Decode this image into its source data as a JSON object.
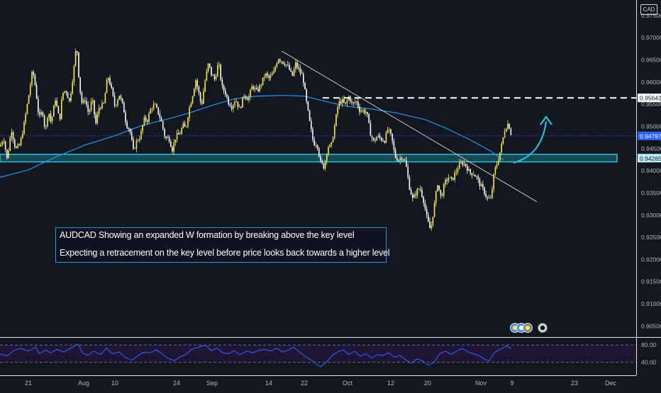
{
  "currency_badge": "CAD",
  "annotation": {
    "line1": "AUDCAD Showing an expanded W formation by breaking above the key level",
    "line2": "Expecting a retracement on the key level before price looks back towards a higher level"
  },
  "price_axis": {
    "ticks": [
      0.975,
      0.97,
      0.965,
      0.96,
      0.955,
      0.95,
      0.945,
      0.94,
      0.935,
      0.93,
      0.925,
      0.92,
      0.915,
      0.91,
      0.905
    ],
    "tick_labels": [
      "0.97500",
      "0.97000",
      "0.96500",
      "0.96000",
      "0.95500",
      "0.95000",
      "0.94500",
      "0.94000",
      "0.93500",
      "0.93000",
      "0.92500",
      "0.92000",
      "0.91500",
      "0.91000",
      "0.90500"
    ],
    "range": [
      0.9025,
      0.9785
    ],
    "markers": [
      {
        "label": "0.95643",
        "value": 0.95643,
        "color": "#ffffff",
        "text_color": "#131722"
      },
      {
        "label": "0.94787",
        "value": 0.94787,
        "color": "#2962ff",
        "text_color": "#ffffff"
      },
      {
        "label": "0.94285",
        "value": 0.94285,
        "color": "#b9f2f7",
        "text_color": "#131722"
      }
    ]
  },
  "rsi_axis": {
    "tick_labels": [
      "80.00",
      "40.00"
    ],
    "ticks": [
      80,
      40
    ],
    "range": [
      20,
      95
    ]
  },
  "time_axis": {
    "labels": [
      "21",
      "Aug",
      "10",
      "24",
      "Sep",
      "14",
      "22",
      "Oct",
      "12",
      "20",
      "Nov",
      "9",
      "23",
      "Dec"
    ]
  },
  "colors": {
    "background": "#131722",
    "candle_up": "#ffeb3b",
    "candle_down": "#ffffff",
    "moving_average": "#2196f3",
    "key_level_zone": "#26c6da",
    "rsi_line": "#2962ff",
    "trendline": "#c8c8c8",
    "arrow": "#26c6da"
  },
  "chart_data": {
    "type": "candlestick",
    "symbol": "AUDCAD",
    "x": [
      "21",
      "Aug",
      "10",
      "24",
      "Sep",
      "14",
      "22",
      "Oct",
      "12",
      "20",
      "Nov",
      "9",
      "23",
      "Dec"
    ],
    "close_path": [
      [
        0,
        0.9455
      ],
      [
        5,
        0.9475
      ],
      [
        10,
        0.9425
      ],
      [
        16,
        0.9495
      ],
      [
        22,
        0.9448
      ],
      [
        28,
        0.9458
      ],
      [
        34,
        0.9505
      ],
      [
        40,
        0.9565
      ],
      [
        46,
        0.9628
      ],
      [
        50,
        0.9588
      ],
      [
        55,
        0.9518
      ],
      [
        60,
        0.9535
      ],
      [
        64,
        0.9488
      ],
      [
        68,
        0.9538
      ],
      [
        72,
        0.9508
      ],
      [
        78,
        0.9562
      ],
      [
        84,
        0.9512
      ],
      [
        88,
        0.9575
      ],
      [
        93,
        0.9582
      ],
      [
        98,
        0.9555
      ],
      [
        104,
        0.9628
      ],
      [
        108,
        0.9688
      ],
      [
        112,
        0.9592
      ],
      [
        116,
        0.9548
      ],
      [
        120,
        0.9562
      ],
      [
        125,
        0.9528
      ],
      [
        130,
        0.9562
      ],
      [
        135,
        0.9505
      ],
      [
        140,
        0.9545
      ],
      [
        146,
        0.9548
      ],
      [
        152,
        0.9615
      ],
      [
        156,
        0.9592
      ],
      [
        162,
        0.9545
      ],
      [
        168,
        0.9572
      ],
      [
        174,
        0.9542
      ],
      [
        178,
        0.9505
      ],
      [
        183,
        0.9492
      ],
      [
        188,
        0.9445
      ],
      [
        193,
        0.9468
      ],
      [
        198,
        0.9478
      ],
      [
        203,
        0.9515
      ],
      [
        208,
        0.9515
      ],
      [
        213,
        0.9542
      ],
      [
        218,
        0.9548
      ],
      [
        223,
        0.9532
      ],
      [
        228,
        0.9508
      ],
      [
        233,
        0.9472
      ],
      [
        238,
        0.9475
      ],
      [
        243,
        0.9448
      ],
      [
        248,
        0.9478
      ],
      [
        253,
        0.9482
      ],
      [
        258,
        0.9502
      ],
      [
        262,
        0.9495
      ],
      [
        266,
        0.9535
      ],
      [
        271,
        0.9568
      ],
      [
        276,
        0.9605
      ],
      [
        280,
        0.9578
      ],
      [
        284,
        0.9545
      ],
      [
        289,
        0.9602
      ],
      [
        294,
        0.9642
      ],
      [
        298,
        0.9618
      ],
      [
        303,
        0.9605
      ],
      [
        308,
        0.9645
      ],
      [
        313,
        0.9588
      ],
      [
        318,
        0.9575
      ],
      [
        322,
        0.9555
      ],
      [
        327,
        0.9545
      ],
      [
        332,
        0.9562
      ],
      [
        338,
        0.9538
      ],
      [
        344,
        0.9572
      ],
      [
        350,
        0.9562
      ],
      [
        356,
        0.9592
      ],
      [
        362,
        0.9578
      ],
      [
        368,
        0.9595
      ],
      [
        374,
        0.9618
      ],
      [
        380,
        0.9608
      ],
      [
        386,
        0.9622
      ],
      [
        392,
        0.9655
      ],
      [
        397,
        0.9648
      ],
      [
        402,
        0.9642
      ],
      [
        407,
        0.9632
      ],
      [
        412,
        0.9612
      ],
      [
        417,
        0.9642
      ],
      [
        422,
        0.9625
      ],
      [
        427,
        0.9612
      ],
      [
        432,
        0.9555
      ],
      [
        437,
        0.9505
      ],
      [
        442,
        0.9462
      ],
      [
        447,
        0.9462
      ],
      [
        452,
        0.9418
      ],
      [
        457,
        0.9408
      ],
      [
        462,
        0.9455
      ],
      [
        467,
        0.9455
      ],
      [
        472,
        0.9502
      ],
      [
        477,
        0.9552
      ],
      [
        482,
        0.9558
      ],
      [
        487,
        0.9548
      ],
      [
        492,
        0.9568
      ],
      [
        497,
        0.9548
      ],
      [
        502,
        0.9558
      ],
      [
        507,
        0.9538
      ],
      [
        512,
        0.9535
      ],
      [
        517,
        0.9532
      ],
      [
        522,
        0.9485
      ],
      [
        527,
        0.9465
      ],
      [
        532,
        0.9478
      ],
      [
        537,
        0.9472
      ],
      [
        542,
        0.9468
      ],
      [
        547,
        0.9495
      ],
      [
        552,
        0.9475
      ],
      [
        557,
        0.9432
      ],
      [
        562,
        0.9425
      ],
      [
        567,
        0.9432
      ],
      [
        572,
        0.9418
      ],
      [
        577,
        0.9365
      ],
      [
        582,
        0.9335
      ],
      [
        587,
        0.9352
      ],
      [
        592,
        0.9362
      ],
      [
        597,
        0.9335
      ],
      [
        602,
        0.9292
      ],
      [
        607,
        0.9265
      ],
      [
        612,
        0.9318
      ],
      [
        617,
        0.9372
      ],
      [
        622,
        0.9338
      ],
      [
        627,
        0.9372
      ],
      [
        632,
        0.9385
      ],
      [
        637,
        0.9378
      ],
      [
        642,
        0.9395
      ],
      [
        647,
        0.9412
      ],
      [
        652,
        0.9418
      ],
      [
        657,
        0.9412
      ],
      [
        662,
        0.9395
      ],
      [
        667,
        0.9395
      ],
      [
        672,
        0.9385
      ],
      [
        677,
        0.9368
      ],
      [
        682,
        0.9355
      ],
      [
        687,
        0.9338
      ],
      [
        692,
        0.9335
      ],
      [
        697,
        0.9398
      ],
      [
        702,
        0.9422
      ],
      [
        707,
        0.9455
      ],
      [
        712,
        0.9495
      ],
      [
        717,
        0.9508
      ],
      [
        721,
        0.948
      ]
    ],
    "moving_average": [
      [
        0,
        0.9385
      ],
      [
        40,
        0.9402
      ],
      [
        80,
        0.9432
      ],
      [
        120,
        0.9458
      ],
      [
        160,
        0.9478
      ],
      [
        200,
        0.9502
      ],
      [
        240,
        0.9518
      ],
      [
        270,
        0.9532
      ],
      [
        300,
        0.9548
      ],
      [
        330,
        0.9562
      ],
      [
        360,
        0.9568
      ],
      [
        400,
        0.957
      ],
      [
        430,
        0.9568
      ],
      [
        460,
        0.9556
      ],
      [
        490,
        0.9545
      ],
      [
        520,
        0.954
      ],
      [
        560,
        0.953
      ],
      [
        600,
        0.9515
      ],
      [
        630,
        0.9495
      ],
      [
        660,
        0.9472
      ],
      [
        690,
        0.9446
      ],
      [
        710,
        0.9425
      ]
    ],
    "key_level_zone": [
      0.942,
      0.9437
    ],
    "resistance_level": 0.95643,
    "current_price": 0.94787,
    "trendline": [
      [
        397,
        0.967
      ],
      [
        757,
        0.933
      ]
    ],
    "rsi": {
      "overbought": 80,
      "oversold": 40,
      "values": [
        [
          0,
          59
        ],
        [
          10,
          55
        ],
        [
          20,
          68
        ],
        [
          30,
          72
        ],
        [
          40,
          66
        ],
        [
          50,
          75
        ],
        [
          56,
          60
        ],
        [
          64,
          68
        ],
        [
          72,
          62
        ],
        [
          80,
          70
        ],
        [
          90,
          64
        ],
        [
          100,
          73
        ],
        [
          110,
          82
        ],
        [
          116,
          62
        ],
        [
          124,
          56
        ],
        [
          132,
          66
        ],
        [
          142,
          58
        ],
        [
          150,
          73
        ],
        [
          158,
          60
        ],
        [
          168,
          64
        ],
        [
          176,
          52
        ],
        [
          186,
          45
        ],
        [
          194,
          55
        ],
        [
          202,
          63
        ],
        [
          212,
          62
        ],
        [
          220,
          69
        ],
        [
          230,
          58
        ],
        [
          238,
          48
        ],
        [
          246,
          44
        ],
        [
          254,
          53
        ],
        [
          262,
          58
        ],
        [
          270,
          70
        ],
        [
          280,
          75
        ],
        [
          290,
          80
        ],
        [
          298,
          67
        ],
        [
          306,
          73
        ],
        [
          314,
          62
        ],
        [
          322,
          60
        ],
        [
          330,
          67
        ],
        [
          338,
          58
        ],
        [
          348,
          66
        ],
        [
          356,
          62
        ],
        [
          366,
          68
        ],
        [
          374,
          70
        ],
        [
          382,
          66
        ],
        [
          390,
          73
        ],
        [
          398,
          64
        ],
        [
          406,
          68
        ],
        [
          414,
          75
        ],
        [
          422,
          64
        ],
        [
          430,
          54
        ],
        [
          438,
          46
        ],
        [
          446,
          36
        ],
        [
          452,
          30
        ],
        [
          460,
          40
        ],
        [
          468,
          55
        ],
        [
          476,
          64
        ],
        [
          484,
          69
        ],
        [
          492,
          58
        ],
        [
          500,
          66
        ],
        [
          508,
          54
        ],
        [
          516,
          60
        ],
        [
          524,
          50
        ],
        [
          532,
          58
        ],
        [
          540,
          56
        ],
        [
          548,
          62
        ],
        [
          556,
          52
        ],
        [
          564,
          56
        ],
        [
          572,
          46
        ],
        [
          580,
          38
        ],
        [
          588,
          48
        ],
        [
          596,
          43
        ],
        [
          604,
          33
        ],
        [
          612,
          40
        ],
        [
          620,
          60
        ],
        [
          628,
          66
        ],
        [
          636,
          58
        ],
        [
          644,
          66
        ],
        [
          652,
          72
        ],
        [
          660,
          64
        ],
        [
          668,
          60
        ],
        [
          676,
          55
        ],
        [
          684,
          46
        ],
        [
          690,
          44
        ],
        [
          698,
          64
        ],
        [
          706,
          70
        ],
        [
          714,
          78
        ],
        [
          721,
          72
        ]
      ]
    }
  }
}
